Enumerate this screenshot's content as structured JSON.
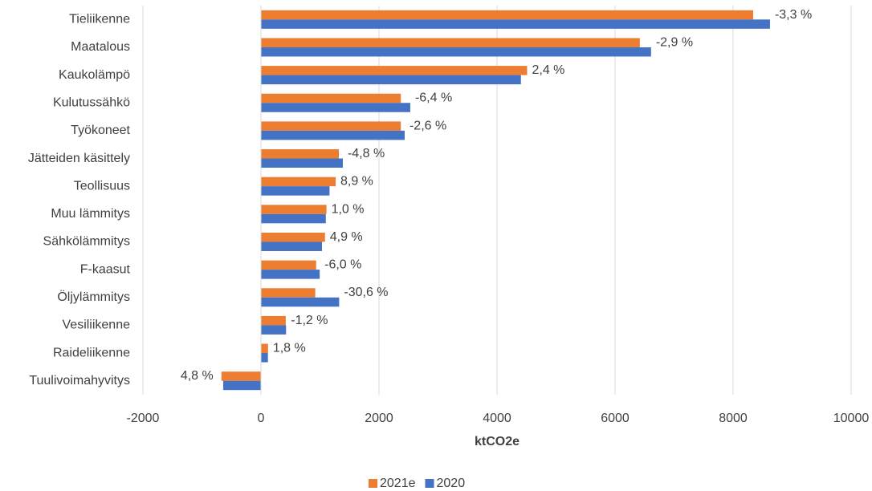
{
  "chart_data": {
    "type": "hbar",
    "xlabel": "ktCO2e",
    "categories": [
      "Tieliikenne",
      "Maatalous",
      "Kaukolämpö",
      "Kulutussähkö",
      "Työkoneet",
      "Jätteiden käsittely",
      "Teollisuus",
      "Muu lämmitys",
      "Sähkölämmitys",
      "F-kaasut",
      "Öljylämmitys",
      "Vesiliikenne",
      "Raideliikenne",
      "Tuulivoimahyvitys"
    ],
    "series": [
      {
        "name": "2021e",
        "color": "#ed7d31",
        "values": [
          8340,
          6420,
          4510,
          2370,
          2370,
          1320,
          1265,
          1110,
          1085,
          935,
          920,
          420,
          120,
          -670
        ]
      },
      {
        "name": "2020",
        "color": "#4472c4",
        "values": [
          8625,
          6610,
          4405,
          2530,
          2435,
          1387,
          1162,
          1099,
          1034,
          995,
          1325,
          425,
          118,
          -640
        ]
      }
    ],
    "annotations": [
      "-3,3 %",
      "-2,9 %",
      "2,4 %",
      "-6,4 %",
      "-2,6 %",
      "-4,8 %",
      "8,9 %",
      "1,0 %",
      "4,9 %",
      "-6,0 %",
      "-30,6 %",
      "-1,2 %",
      "1,8 %",
      "4,8 %"
    ],
    "xlim": [
      -2000,
      10000
    ],
    "xticks": [
      -2000,
      0,
      2000,
      4000,
      6000,
      8000,
      10000
    ],
    "grid": true,
    "legend": "bottom"
  }
}
